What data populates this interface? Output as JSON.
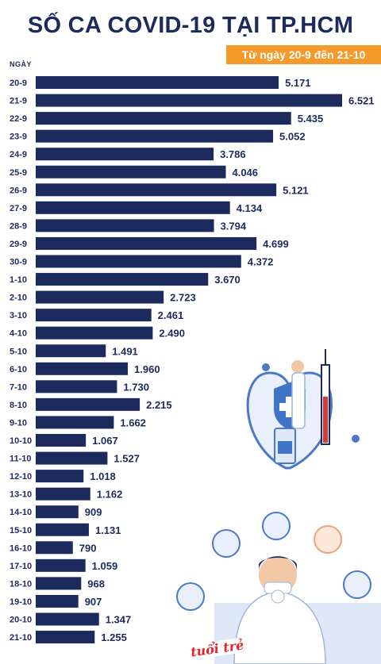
{
  "header": {
    "title": "SỐ CA COVID-19 TẠI TP.HCM",
    "subtitle": "Từ ngày 20-9 đến 21-10",
    "axis_label": "NGÀY"
  },
  "logo": {
    "text": "tuổi trẻ"
  },
  "colors": {
    "bar": "#1c2a5e",
    "accent": "#f39a2b",
    "logo": "#e8242a"
  },
  "chart_data": {
    "type": "bar",
    "orientation": "horizontal",
    "title": "SỐ CA COVID-19 TẠI TP.HCM",
    "subtitle": "Từ ngày 20-9 đến 21-10",
    "ylabel": "NGÀY",
    "xlim": [
      0,
      6521
    ],
    "grid": false,
    "categories": [
      "20-9",
      "21-9",
      "22-9",
      "23-9",
      "24-9",
      "25-9",
      "26-9",
      "27-9",
      "28-9",
      "29-9",
      "30-9",
      "1-10",
      "2-10",
      "3-10",
      "4-10",
      "5-10",
      "6-10",
      "7-10",
      "8-10",
      "9-10",
      "10-10",
      "11-10",
      "12-10",
      "13-10",
      "14-10",
      "15-10",
      "16-10",
      "17-10",
      "18-10",
      "19-10",
      "20-10",
      "21-10"
    ],
    "values": [
      5171,
      6521,
      5435,
      5052,
      3786,
      4046,
      5121,
      4134,
      3794,
      4699,
      4372,
      3670,
      2723,
      2461,
      2490,
      1491,
      1960,
      1730,
      2215,
      1662,
      1067,
      1527,
      1018,
      1162,
      909,
      1131,
      790,
      1059,
      968,
      907,
      1347,
      1255
    ],
    "value_labels": [
      "5.171",
      "6.521",
      "5.435",
      "5.052",
      "3.786",
      "4.046",
      "5.121",
      "4.134",
      "3.794",
      "4.699",
      "4.372",
      "3.670",
      "2.723",
      "2.461",
      "2.490",
      "1.491",
      "1.960",
      "1.730",
      "2.215",
      "1.662",
      "1.067",
      "1.527",
      "1.018",
      "1.162",
      "909",
      "1.131",
      "790",
      "1.059",
      "968",
      "907",
      "1.347",
      "1.255"
    ]
  }
}
